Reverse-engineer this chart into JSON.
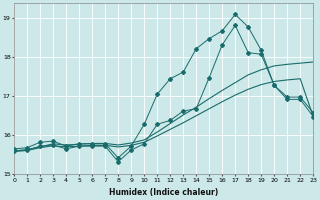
{
  "xlabel": "Humidex (Indice chaleur)",
  "bg_color": "#cce8e8",
  "grid_color": "#b0d8d8",
  "line_color": "#1a6b6b",
  "xlim": [
    0,
    23
  ],
  "ylim": [
    15.0,
    19.4
  ],
  "yticks": [
    15,
    16,
    17,
    18,
    19
  ],
  "xticks": [
    0,
    1,
    2,
    3,
    4,
    5,
    6,
    7,
    8,
    9,
    10,
    11,
    12,
    13,
    14,
    15,
    16,
    17,
    18,
    19,
    20,
    21,
    22,
    23
  ],
  "line_top_marker": {
    "x": [
      0,
      1,
      2,
      3,
      4,
      5,
      6,
      7,
      8,
      9,
      10,
      11,
      12,
      13,
      14,
      15,
      16,
      17,
      18,
      19,
      20,
      21,
      22,
      23
    ],
    "y": [
      15.65,
      15.68,
      15.82,
      15.85,
      15.72,
      15.78,
      15.78,
      15.78,
      15.42,
      15.72,
      16.28,
      17.05,
      17.45,
      17.62,
      18.22,
      18.48,
      18.68,
      19.1,
      18.78,
      18.18,
      17.28,
      16.98,
      16.98,
      16.58
    ]
  },
  "line_bot_marker": {
    "x": [
      0,
      1,
      2,
      3,
      4,
      5,
      6,
      7,
      8,
      9,
      10,
      11,
      12,
      13,
      14,
      15,
      16,
      17,
      18,
      19,
      20,
      21,
      22,
      23
    ],
    "y": [
      15.6,
      15.62,
      15.72,
      15.75,
      15.65,
      15.72,
      15.72,
      15.72,
      15.32,
      15.62,
      15.78,
      16.28,
      16.38,
      16.62,
      16.68,
      17.48,
      18.32,
      18.82,
      18.12,
      18.08,
      17.28,
      16.92,
      16.92,
      16.48
    ]
  },
  "line_smooth_top": {
    "x": [
      0,
      1,
      2,
      3,
      4,
      5,
      6,
      7,
      8,
      9,
      10,
      11,
      12,
      13,
      14,
      15,
      16,
      17,
      18,
      19,
      20,
      21,
      22,
      23
    ],
    "y": [
      15.6,
      15.63,
      15.7,
      15.78,
      15.75,
      15.77,
      15.79,
      15.79,
      15.75,
      15.8,
      15.88,
      16.08,
      16.3,
      16.52,
      16.72,
      16.94,
      17.15,
      17.35,
      17.55,
      17.68,
      17.78,
      17.82,
      17.85,
      17.88
    ]
  },
  "line_smooth_bot": {
    "x": [
      0,
      1,
      2,
      3,
      4,
      5,
      6,
      7,
      8,
      9,
      10,
      11,
      12,
      13,
      14,
      15,
      16,
      17,
      18,
      19,
      20,
      21,
      22,
      23
    ],
    "y": [
      15.58,
      15.61,
      15.68,
      15.73,
      15.7,
      15.72,
      15.74,
      15.74,
      15.7,
      15.74,
      15.82,
      15.98,
      16.15,
      16.32,
      16.5,
      16.68,
      16.86,
      17.03,
      17.18,
      17.3,
      17.38,
      17.42,
      17.45,
      16.48
    ]
  }
}
